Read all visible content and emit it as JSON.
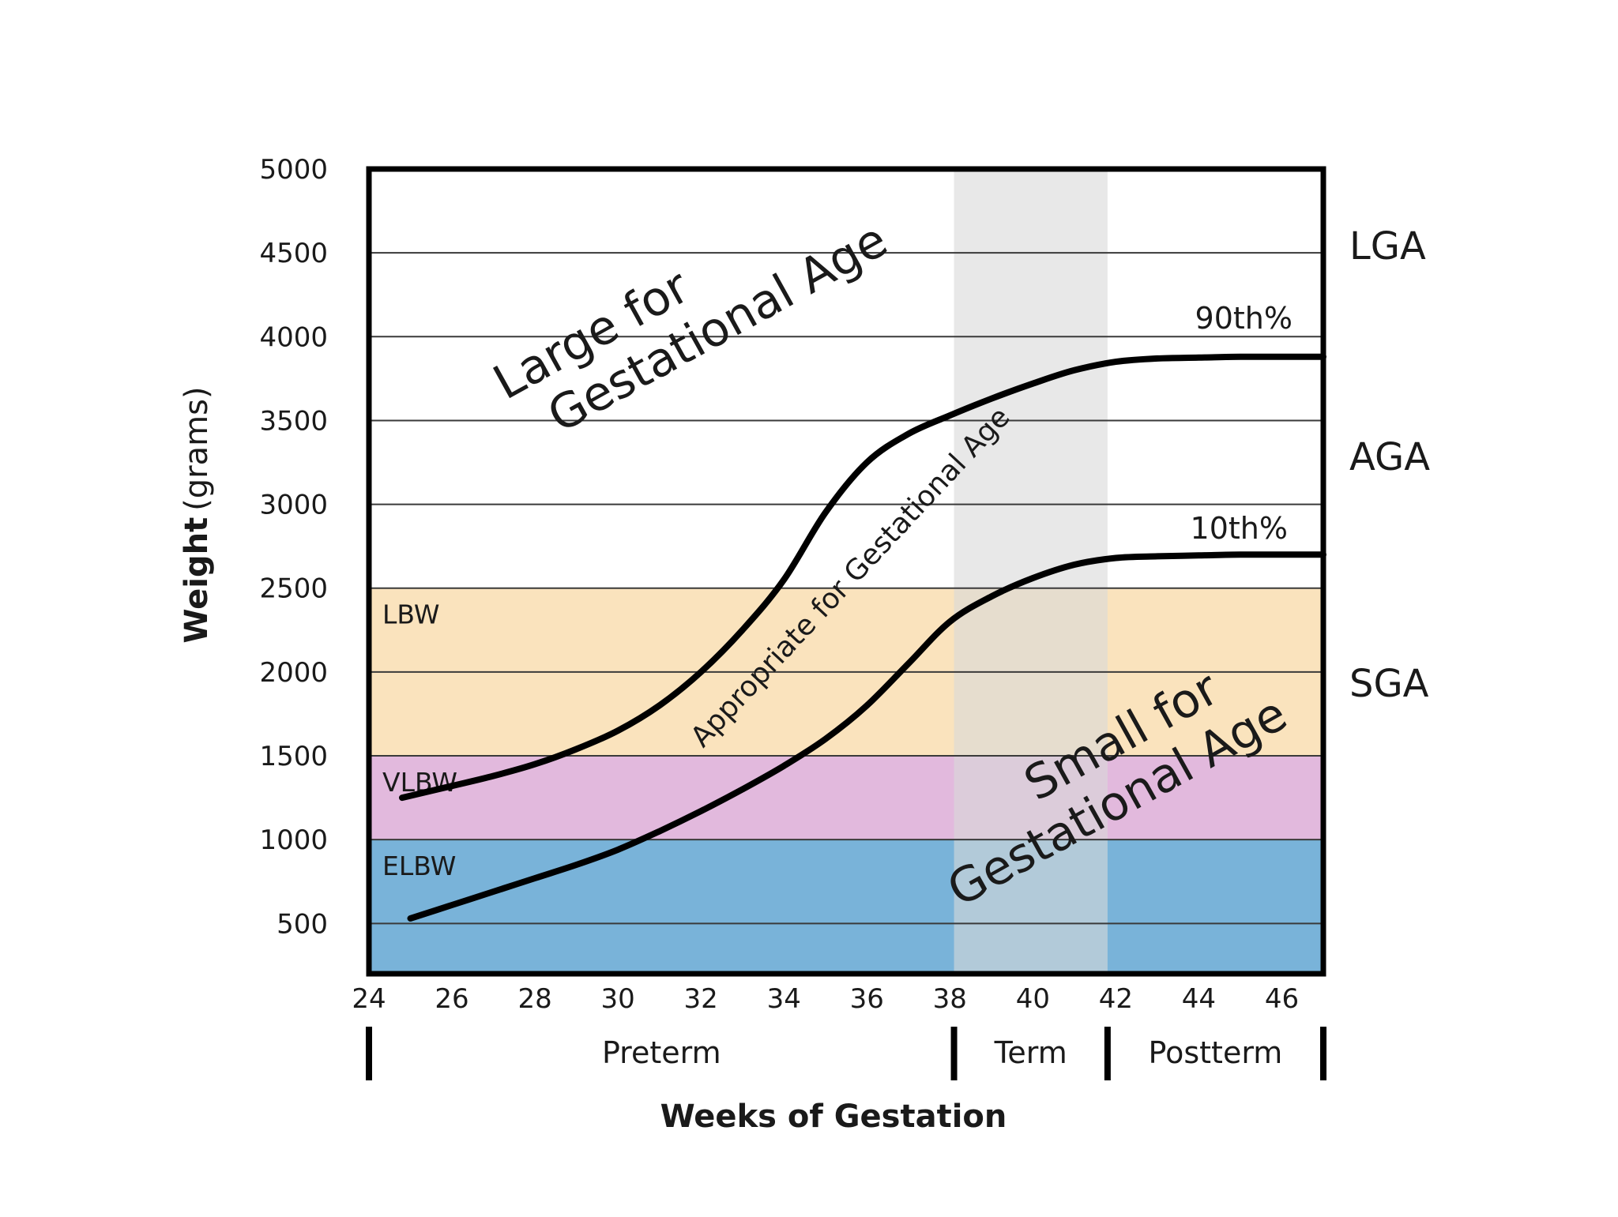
{
  "chart_data": {
    "type": "line",
    "xlabel": "Weeks of Gestation",
    "ylabel_main": "Weight",
    "ylabel_unit": "(grams)",
    "xlim": [
      24,
      47
    ],
    "ylim": [
      200,
      5000
    ],
    "xticks": [
      24,
      26,
      28,
      30,
      32,
      34,
      36,
      38,
      40,
      42,
      44,
      46
    ],
    "yticks": [
      500,
      1000,
      1500,
      2000,
      2500,
      3000,
      3500,
      4000,
      4500,
      5000
    ],
    "grid": true,
    "weight_bands": [
      {
        "label": "ELBW",
        "from": 200,
        "to": 1000,
        "color": "#79b3d9"
      },
      {
        "label": "VLBW",
        "from": 1000,
        "to": 1500,
        "color": "#e2b9dd"
      },
      {
        "label": "LBW",
        "from": 1500,
        "to": 2500,
        "color": "#fae3bd"
      }
    ],
    "term_shading": {
      "from": 38.1,
      "to": 41.8,
      "color": "#d8d8d8"
    },
    "series": [
      {
        "name": "90th%",
        "x": [
          24.8,
          26,
          27,
          28,
          29,
          30,
          31,
          32,
          33,
          34,
          35,
          36,
          37,
          38,
          39,
          40,
          41,
          42,
          43,
          44,
          45,
          46,
          47
        ],
        "y": [
          1250,
          1320,
          1380,
          1450,
          1540,
          1650,
          1800,
          2000,
          2250,
          2550,
          2950,
          3250,
          3420,
          3530,
          3630,
          3720,
          3800,
          3850,
          3870,
          3875,
          3880,
          3880,
          3880
        ]
      },
      {
        "name": "10th%",
        "x": [
          25,
          26,
          27,
          28,
          29,
          30,
          31,
          32,
          33,
          34,
          35,
          36,
          37,
          38,
          39,
          40,
          41,
          42,
          43,
          44,
          45,
          46,
          47
        ],
        "y": [
          530,
          610,
          690,
          770,
          850,
          940,
          1050,
          1170,
          1300,
          1440,
          1600,
          1800,
          2050,
          2300,
          2450,
          2560,
          2640,
          2680,
          2690,
          2695,
          2700,
          2700,
          2700
        ]
      }
    ],
    "classification_labels": [
      "LGA",
      "AGA",
      "SGA"
    ],
    "annotations": {
      "large_line1": "Large for",
      "large_line2": "Gestational Age",
      "appropriate": "Appropriate for Gestational Age",
      "small_line1": "Small for",
      "small_line2": "Gestational Age"
    },
    "periods": [
      {
        "label": "Preterm",
        "from": 24,
        "to": 38.1
      },
      {
        "label": "Term",
        "from": 38.1,
        "to": 41.8
      },
      {
        "label": "Postterm",
        "from": 41.8,
        "to": 47
      }
    ]
  }
}
